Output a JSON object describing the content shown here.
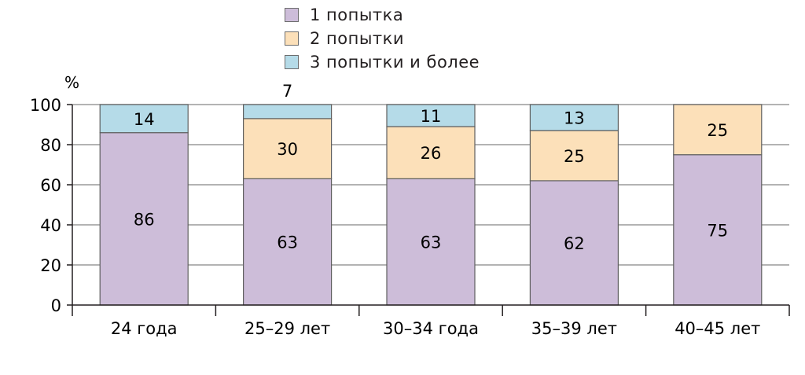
{
  "chart_data": {
    "type": "bar",
    "stacked": true,
    "categories": [
      "24 года",
      "25–29 лет",
      "30–34 года",
      "35–39 лет",
      "40–45 лет"
    ],
    "series": [
      {
        "name": "1 попытка",
        "values": [
          86,
          63,
          63,
          62,
          75
        ],
        "color": "#cdbdd9"
      },
      {
        "name": "2 попытки",
        "values": [
          0,
          30,
          26,
          25,
          25
        ],
        "color": "#fce0b9"
      },
      {
        "name": "3 попытки и более",
        "values": [
          14,
          7,
          11,
          13,
          0
        ],
        "color": "#b5dbe8"
      }
    ],
    "ylabel": "%",
    "ylim": [
      0,
      100
    ],
    "yticks": [
      0,
      20,
      40,
      60,
      80,
      100
    ],
    "grid": true,
    "legend_position": "top-center"
  }
}
